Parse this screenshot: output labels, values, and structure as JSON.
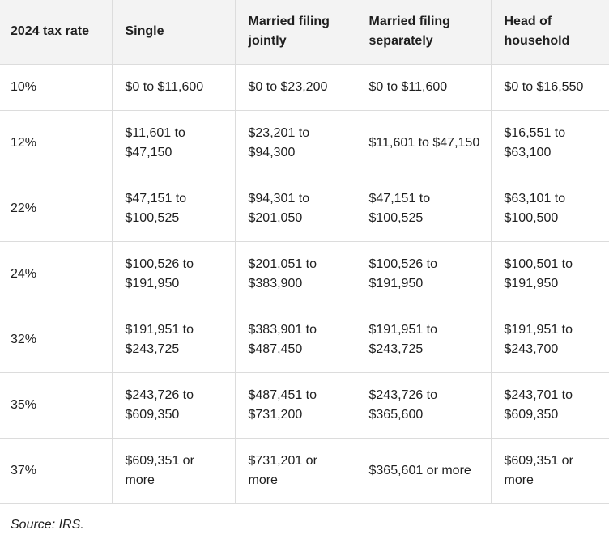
{
  "table": {
    "headers": [
      "2024 tax rate",
      "Single",
      "Married filing jointly",
      "Married filing separately",
      "Head of household"
    ],
    "rows": [
      [
        "10%",
        "$0 to $11,600",
        "$0 to $23,200",
        "$0 to $11,600",
        "$0 to $16,550"
      ],
      [
        "12%",
        "$11,601 to $47,150",
        "$23,201 to $94,300",
        "$11,601 to $47,150",
        "$16,551 to $63,100"
      ],
      [
        "22%",
        "$47,151 to $100,525",
        "$94,301 to $201,050",
        "$47,151 to $100,525",
        "$63,101 to $100,500"
      ],
      [
        "24%",
        "$100,526 to $191,950",
        "$201,051 to $383,900",
        "$100,526 to $191,950",
        "$100,501 to $191,950"
      ],
      [
        "32%",
        "$191,951 to $243,725",
        "$383,901 to $487,450",
        "$191,951 to $243,725",
        "$191,951 to $243,700"
      ],
      [
        "35%",
        "$243,726 to $609,350",
        "$487,451 to $731,200",
        "$243,726 to $365,600",
        "$243,701 to $609,350"
      ],
      [
        "37%",
        "$609,351 or more",
        "$731,201 or more",
        "$365,601 or more",
        "$609,351 or more"
      ]
    ]
  },
  "source": "Source: IRS."
}
